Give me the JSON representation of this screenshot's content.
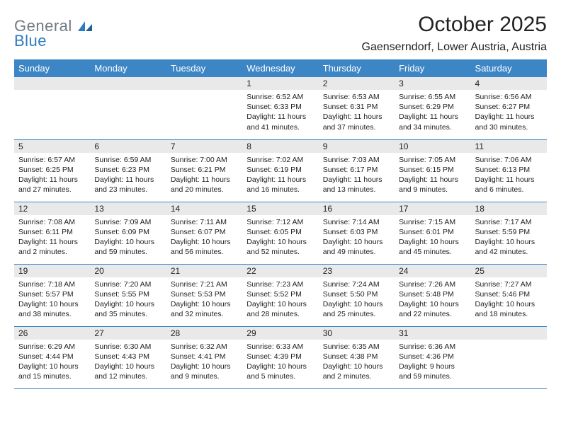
{
  "brand": {
    "text1": "General",
    "text2": "Blue"
  },
  "title": "October 2025",
  "location": "Gaenserndorf, Lower Austria, Austria",
  "colors": {
    "header_bg": "#3d86c6",
    "header_text": "#ffffff",
    "band_bg": "#e9e9e9",
    "rule": "#3d86c6",
    "logo_gray": "#6f7a82",
    "logo_blue": "#2f7bbf",
    "page_bg": "#ffffff"
  },
  "typography": {
    "title_fontsize": 30,
    "location_fontsize": 16,
    "dayheader_fontsize": 13,
    "daynum_fontsize": 12,
    "body_fontsize": 10.5
  },
  "columns": [
    "Sunday",
    "Monday",
    "Tuesday",
    "Wednesday",
    "Thursday",
    "Friday",
    "Saturday"
  ],
  "weeks": [
    [
      null,
      null,
      null,
      {
        "n": "1",
        "sr": "6:52 AM",
        "ss": "6:33 PM",
        "dl": "11 hours and 41 minutes."
      },
      {
        "n": "2",
        "sr": "6:53 AM",
        "ss": "6:31 PM",
        "dl": "11 hours and 37 minutes."
      },
      {
        "n": "3",
        "sr": "6:55 AM",
        "ss": "6:29 PM",
        "dl": "11 hours and 34 minutes."
      },
      {
        "n": "4",
        "sr": "6:56 AM",
        "ss": "6:27 PM",
        "dl": "11 hours and 30 minutes."
      }
    ],
    [
      {
        "n": "5",
        "sr": "6:57 AM",
        "ss": "6:25 PM",
        "dl": "11 hours and 27 minutes."
      },
      {
        "n": "6",
        "sr": "6:59 AM",
        "ss": "6:23 PM",
        "dl": "11 hours and 23 minutes."
      },
      {
        "n": "7",
        "sr": "7:00 AM",
        "ss": "6:21 PM",
        "dl": "11 hours and 20 minutes."
      },
      {
        "n": "8",
        "sr": "7:02 AM",
        "ss": "6:19 PM",
        "dl": "11 hours and 16 minutes."
      },
      {
        "n": "9",
        "sr": "7:03 AM",
        "ss": "6:17 PM",
        "dl": "11 hours and 13 minutes."
      },
      {
        "n": "10",
        "sr": "7:05 AM",
        "ss": "6:15 PM",
        "dl": "11 hours and 9 minutes."
      },
      {
        "n": "11",
        "sr": "7:06 AM",
        "ss": "6:13 PM",
        "dl": "11 hours and 6 minutes."
      }
    ],
    [
      {
        "n": "12",
        "sr": "7:08 AM",
        "ss": "6:11 PM",
        "dl": "11 hours and 2 minutes."
      },
      {
        "n": "13",
        "sr": "7:09 AM",
        "ss": "6:09 PM",
        "dl": "10 hours and 59 minutes."
      },
      {
        "n": "14",
        "sr": "7:11 AM",
        "ss": "6:07 PM",
        "dl": "10 hours and 56 minutes."
      },
      {
        "n": "15",
        "sr": "7:12 AM",
        "ss": "6:05 PM",
        "dl": "10 hours and 52 minutes."
      },
      {
        "n": "16",
        "sr": "7:14 AM",
        "ss": "6:03 PM",
        "dl": "10 hours and 49 minutes."
      },
      {
        "n": "17",
        "sr": "7:15 AM",
        "ss": "6:01 PM",
        "dl": "10 hours and 45 minutes."
      },
      {
        "n": "18",
        "sr": "7:17 AM",
        "ss": "5:59 PM",
        "dl": "10 hours and 42 minutes."
      }
    ],
    [
      {
        "n": "19",
        "sr": "7:18 AM",
        "ss": "5:57 PM",
        "dl": "10 hours and 38 minutes."
      },
      {
        "n": "20",
        "sr": "7:20 AM",
        "ss": "5:55 PM",
        "dl": "10 hours and 35 minutes."
      },
      {
        "n": "21",
        "sr": "7:21 AM",
        "ss": "5:53 PM",
        "dl": "10 hours and 32 minutes."
      },
      {
        "n": "22",
        "sr": "7:23 AM",
        "ss": "5:52 PM",
        "dl": "10 hours and 28 minutes."
      },
      {
        "n": "23",
        "sr": "7:24 AM",
        "ss": "5:50 PM",
        "dl": "10 hours and 25 minutes."
      },
      {
        "n": "24",
        "sr": "7:26 AM",
        "ss": "5:48 PM",
        "dl": "10 hours and 22 minutes."
      },
      {
        "n": "25",
        "sr": "7:27 AM",
        "ss": "5:46 PM",
        "dl": "10 hours and 18 minutes."
      }
    ],
    [
      {
        "n": "26",
        "sr": "6:29 AM",
        "ss": "4:44 PM",
        "dl": "10 hours and 15 minutes."
      },
      {
        "n": "27",
        "sr": "6:30 AM",
        "ss": "4:43 PM",
        "dl": "10 hours and 12 minutes."
      },
      {
        "n": "28",
        "sr": "6:32 AM",
        "ss": "4:41 PM",
        "dl": "10 hours and 9 minutes."
      },
      {
        "n": "29",
        "sr": "6:33 AM",
        "ss": "4:39 PM",
        "dl": "10 hours and 5 minutes."
      },
      {
        "n": "30",
        "sr": "6:35 AM",
        "ss": "4:38 PM",
        "dl": "10 hours and 2 minutes."
      },
      {
        "n": "31",
        "sr": "6:36 AM",
        "ss": "4:36 PM",
        "dl": "9 hours and 59 minutes."
      },
      null
    ]
  ],
  "labels": {
    "sunrise": "Sunrise:",
    "sunset": "Sunset:",
    "daylight": "Daylight:"
  }
}
